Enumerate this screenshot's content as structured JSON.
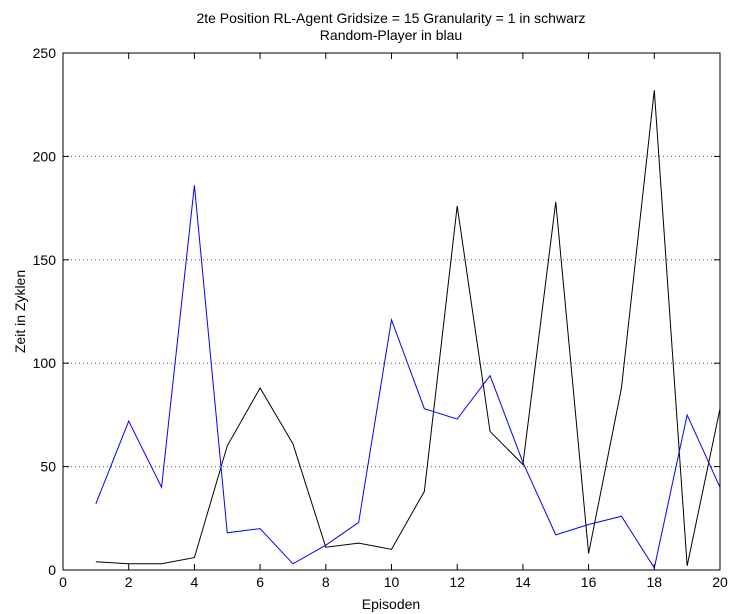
{
  "chart_data": {
    "type": "line",
    "title": "2te  Position RL-Agent Gridsize = 15 Granularity = 1 in schwarz",
    "subtitle": "Random-Player in blau",
    "xlabel": "Episoden",
    "ylabel": "Zeit in Zyklen",
    "xlim": [
      0,
      20
    ],
    "ylim": [
      0,
      250
    ],
    "xticks": [
      "0",
      "2",
      "4",
      "6",
      "8",
      "10",
      "12",
      "14",
      "16",
      "18",
      "20"
    ],
    "yticks": [
      "0",
      "50",
      "100",
      "150",
      "200",
      "250"
    ],
    "grid": "horizontal dotted",
    "x": [
      1,
      2,
      3,
      4,
      5,
      6,
      7,
      8,
      9,
      10,
      11,
      12,
      13,
      14,
      15,
      16,
      17,
      18,
      19,
      20
    ],
    "series": [
      {
        "color": "#000000",
        "values": [
          4,
          3,
          3,
          6,
          60,
          88,
          61,
          11,
          13,
          10,
          38,
          176,
          67,
          51,
          178,
          8,
          88,
          232,
          2,
          78
        ]
      },
      {
        "color": "#0000ff",
        "values": [
          32,
          72,
          40,
          186,
          18,
          20,
          3,
          12,
          23,
          121,
          78,
          73,
          94,
          52,
          17,
          22,
          26,
          1,
          75,
          40
        ]
      }
    ]
  }
}
